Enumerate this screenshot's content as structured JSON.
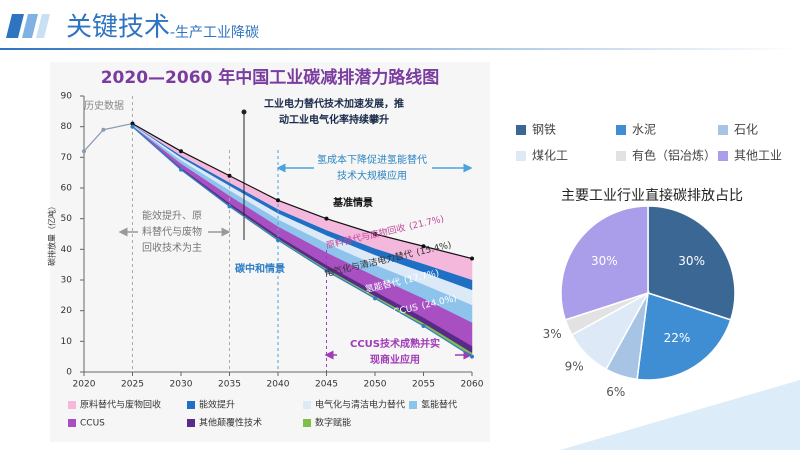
{
  "header": {
    "title": "关键技术",
    "subtitle": "-生产工业降碳"
  },
  "chart_data": [
    {
      "type": "area",
      "title": "2020—2060 年中国工业碳减排潜力路线图",
      "y_label": "碳排放量（亿吨）",
      "x": [
        2020,
        2022,
        2025,
        2030,
        2035,
        2040,
        2045,
        2050,
        2055,
        2060
      ],
      "xlim": [
        2020,
        2060
      ],
      "xticks": [
        2020,
        2025,
        2030,
        2035,
        2040,
        2045,
        2050,
        2055,
        2060
      ],
      "ylim": [
        0,
        90
      ],
      "yticks": [
        0,
        10,
        20,
        30,
        40,
        50,
        60,
        70,
        80,
        90
      ],
      "series": [
        {
          "name": "原料替代与废物回收",
          "kind": "area",
          "color": "#f4b8dd",
          "share_label": "(21.7%)",
          "values": [
            null,
            null,
            0.2,
            1.3,
            2.2,
            2.8,
            3.7,
            4.6,
            5.6,
            6.9
          ]
        },
        {
          "name": "能效提升",
          "kind": "area",
          "color": "#1f6fc5",
          "values": [
            null,
            null,
            0.1,
            0.6,
            1.0,
            1.3,
            1.7,
            2.1,
            2.7,
            3.3
          ]
        },
        {
          "name": "电气化与清洁电力替代",
          "kind": "area",
          "color": "#dce9f7",
          "share_label": "(15.4%)",
          "values": [
            null,
            null,
            0.2,
            0.9,
            1.5,
            2.0,
            2.6,
            3.2,
            4.0,
            4.9
          ]
        },
        {
          "name": "氢能替代",
          "kind": "area",
          "color": "#8ec4ec",
          "share_label": "(17.7%)",
          "values": [
            null,
            null,
            0.2,
            1.1,
            1.8,
            2.3,
            3.0,
            3.7,
            4.6,
            5.7
          ]
        },
        {
          "name": "CCUS",
          "kind": "area",
          "color": "#a84fc2",
          "share_label": "(24.0%)",
          "values": [
            null,
            null,
            0.2,
            1.4,
            2.4,
            3.1,
            4.1,
            5.0,
            6.2,
            7.7
          ]
        },
        {
          "name": "其他颠覆性技术",
          "kind": "area",
          "color": "#5a2a88",
          "values": [
            null,
            null,
            0.1,
            0.4,
            0.7,
            0.9,
            1.2,
            1.5,
            1.8,
            2.2
          ]
        },
        {
          "name": "数字赋能",
          "kind": "area",
          "color": "#7cc24a",
          "values": [
            null,
            null,
            0,
            0.2,
            0.4,
            0.5,
            0.7,
            0.8,
            1.0,
            1.3
          ]
        },
        {
          "name": "历史数据",
          "kind": "line",
          "color": "#8a9bb0",
          "values": [
            72,
            79,
            81,
            null,
            null,
            null,
            null,
            null,
            null,
            null
          ]
        },
        {
          "name": "基准情景",
          "kind": "line",
          "color": "#111111",
          "values": [
            null,
            null,
            81,
            72,
            64,
            56,
            50,
            45,
            41,
            37
          ]
        },
        {
          "name": "碳中和情景",
          "kind": "line",
          "stack_base": true,
          "color": "#2e7ec6",
          "values": [
            null,
            null,
            80,
            66,
            54,
            43,
            33,
            24,
            15,
            5
          ]
        }
      ],
      "annotations": [
        [
          "工业电力替代技术加速发展，推",
          "动工业电气化率持续攀升"
        ],
        [
          "氢成本下降促进氢能替代",
          "技术大规模应用"
        ],
        [
          "能效提升、原",
          "料替代与废物",
          "回收技术为主"
        ],
        [
          "CCUS技术成熟并实",
          "现商业应用"
        ]
      ]
    },
    {
      "type": "pie",
      "title": "主要工业行业直接碳排放占比",
      "categories": [
        "钢铁",
        "水泥",
        "石化",
        "煤化工",
        "有色（铝冶炼）",
        "其他工业"
      ],
      "values": [
        30,
        22,
        6,
        9,
        3,
        30
      ],
      "value_labels": [
        "30%",
        "22%",
        "6%",
        "9%",
        "3%",
        "30%"
      ],
      "colors": [
        "#3b6795",
        "#3f8ed3",
        "#a7c4e5",
        "#dde9f6",
        "#e2e2e2",
        "#aa9de9"
      ]
    }
  ]
}
